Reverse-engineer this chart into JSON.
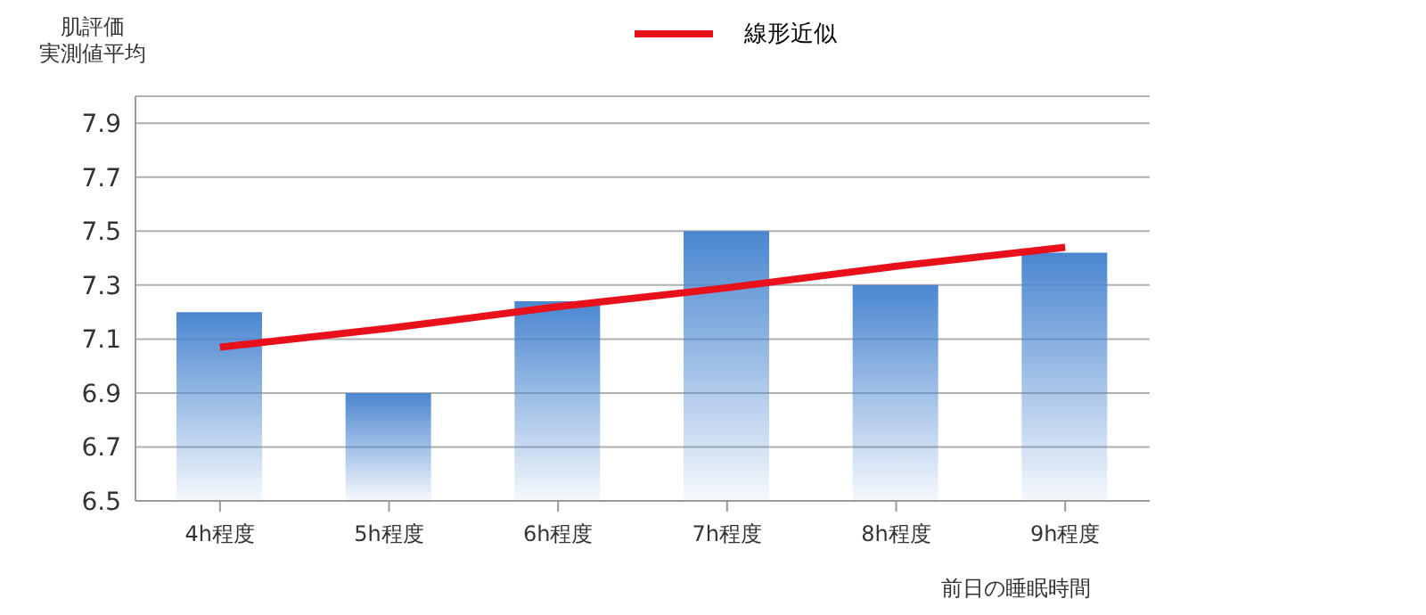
{
  "chart_data": {
    "type": "bar",
    "ylabel": "肌評価実測値平均",
    "xlabel": "前日の睡眠時間",
    "categories": [
      "4h程度",
      "5h程度",
      "6h程度",
      "7h程度",
      "8h程度",
      "9h程度"
    ],
    "series": [
      {
        "color": "#4a86d0",
        "values": [
          7.2,
          6.9,
          7.24,
          7.5,
          7.3,
          7.42
        ]
      },
      {
        "type": "line",
        "name": "線形近似",
        "color": "#e8101a",
        "values": [
          7.07,
          7.14,
          7.22,
          7.29,
          7.37,
          7.44
        ]
      }
    ],
    "ylim": [
      6.5,
      8.0
    ],
    "yticks": [
      6.5,
      6.7,
      6.9,
      7.1,
      7.3,
      7.5,
      7.7,
      7.9
    ],
    "grid": "y",
    "legend": "top",
    "marker": "none"
  }
}
